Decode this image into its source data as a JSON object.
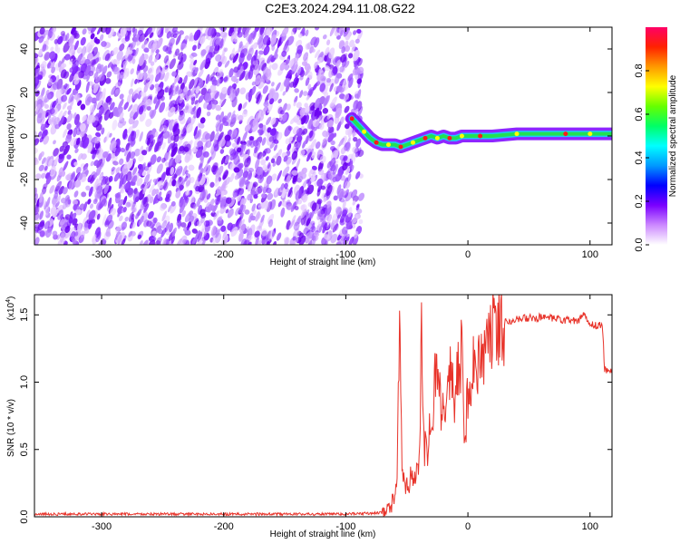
{
  "title": "C2E3.2024.294.11.08.G22",
  "colors": {
    "snr_line": "#e8332a",
    "spec_base": "#8a2be2",
    "ridge": [
      "#1ec8ff",
      "#22e052",
      "#ffff00",
      "#ff6a00",
      "#ff1a1a"
    ]
  },
  "chart_data": [
    {
      "type": "heatmap",
      "xlabel": "Height of straight line (km)",
      "ylabel": "Frequency (Hz)",
      "xlim": [
        -355,
        118
      ],
      "ylim": [
        -50,
        50
      ],
      "x_ticks": [
        -300,
        -200,
        -100,
        0,
        100
      ],
      "x_tick_labels": [
        "-300",
        "-200",
        "-100",
        "0",
        "100"
      ],
      "y_ticks": [
        -40,
        -20,
        0,
        20,
        40
      ],
      "y_tick_labels": [
        "-40",
        "-20",
        "0",
        "20",
        "40"
      ],
      "noise_region_x": [
        -355,
        -87
      ],
      "ridge": {
        "x": [
          -95,
          -90,
          -85,
          -80,
          -75,
          -70,
          -65,
          -60,
          -55,
          -50,
          -45,
          -40,
          -35,
          -30,
          -25,
          -20,
          -15,
          -10,
          -5,
          0,
          10,
          20,
          40,
          60,
          80,
          90,
          100,
          118
        ],
        "y": [
          8,
          5,
          2,
          -1,
          -3,
          -4,
          -4,
          -4,
          -5,
          -4,
          -3,
          -2,
          -1,
          0,
          -1,
          0,
          -1,
          -1,
          0,
          0,
          0,
          0,
          1,
          1,
          1,
          1,
          1,
          1
        ]
      },
      "colorbar": {
        "label": "Normalized spectral amplitude",
        "range": [
          0.0,
          1.0
        ],
        "ticks": [
          0.0,
          0.2,
          0.4,
          0.6,
          0.8
        ],
        "tick_labels": [
          "0.0",
          "0.2",
          "0.4",
          "0.6",
          "0.8"
        ],
        "colors": [
          "#ffffff",
          "#cc88ff",
          "#7a00ff",
          "#0000ff",
          "#0099ff",
          "#00ffff",
          "#00ff66",
          "#66ff00",
          "#ffff00",
          "#ff9900",
          "#ff2200",
          "#ff0066"
        ]
      }
    },
    {
      "type": "line",
      "xlabel": "Height of straight line (km)",
      "ylabel": "SNR (10 * v/v)",
      "y_multiplier": "(x10",
      "y_multiplier_exp": "4",
      "xlim": [
        -355,
        118
      ],
      "ylim": [
        0.0,
        1.65
      ],
      "x_ticks": [
        -300,
        -200,
        -100,
        0,
        100
      ],
      "x_tick_labels": [
        "-300",
        "-200",
        "-100",
        "0",
        "100"
      ],
      "y_ticks": [
        0.0,
        0.5,
        1.0,
        1.5
      ],
      "y_tick_labels": [
        "0.0",
        "0.5",
        "1.0",
        "1.5"
      ],
      "series": [
        {
          "x": [
            -355,
            -200,
            -100,
            -70,
            -62,
            -58,
            -56,
            -54,
            -52,
            -50,
            -45,
            -40,
            -38,
            -36,
            -34,
            -30,
            -25,
            -22,
            -20,
            -15,
            -10,
            -5,
            -3,
            0,
            5,
            10,
            15,
            20,
            25,
            30,
            40,
            60,
            80,
            90,
            95,
            100,
            105,
            110,
            112,
            115,
            118
          ],
          "y": [
            0.02,
            0.02,
            0.02,
            0.03,
            0.1,
            0.3,
            1.35,
            0.4,
            0.2,
            0.25,
            0.28,
            0.45,
            1.3,
            0.5,
            0.5,
            0.65,
            1.2,
            0.8,
            0.9,
            1.05,
            0.9,
            1.25,
            0.55,
            0.95,
            1.1,
            1.2,
            1.3,
            1.38,
            1.42,
            1.45,
            1.47,
            1.48,
            1.46,
            1.45,
            1.5,
            1.44,
            1.42,
            1.42,
            1.1,
            1.08,
            1.09
          ]
        }
      ]
    }
  ]
}
